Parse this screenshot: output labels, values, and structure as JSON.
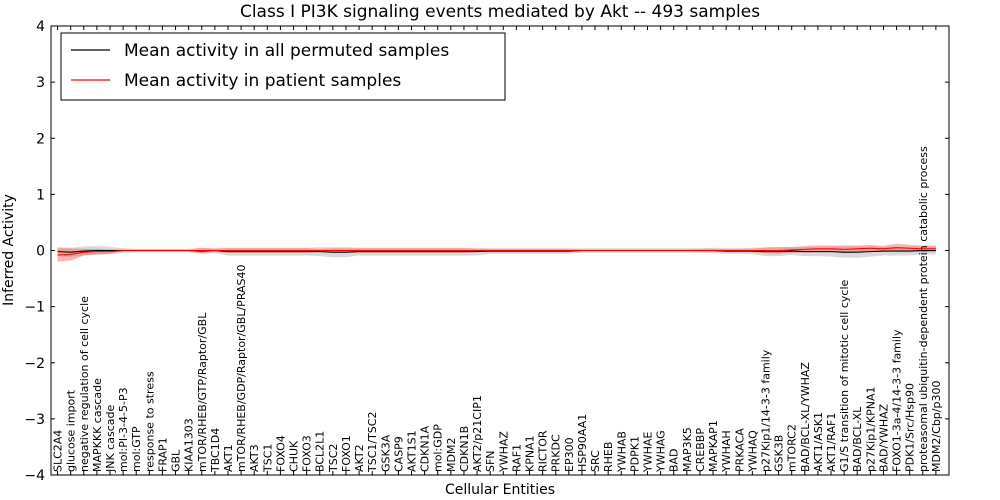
{
  "chart_data": {
    "type": "line",
    "title": "Class I PI3K signaling events mediated by Akt -- 493 samples",
    "xlabel": "Cellular Entities",
    "ylabel": "Inferred Activity",
    "ylim": [
      -4,
      4
    ],
    "yticks": [
      -4,
      -3,
      -2,
      -1,
      0,
      1,
      2,
      3,
      4
    ],
    "grid": false,
    "legend_position": "top-left",
    "colors": {
      "permuted": "#000000",
      "patient": "#ff0000",
      "permuted_band": "#bbbbbb",
      "patient_band": "#ff6666"
    },
    "categories": [
      "SLC2A4",
      "glucose import",
      "negative regulation of cell cycle",
      "MAPKKK cascade",
      "JNK cascade",
      "mol:PI-3-4-5-P3",
      "mol:GTP",
      "response to stress",
      "FRAP1",
      "GBL",
      "KIAA1303",
      "mTOR/RHEB/GTP/Raptor/GBL",
      "TBC1D4",
      "AKT1",
      "mTOR/RHEB/GDP/Raptor/GBL/PRAS40",
      "AKT3",
      "TSC1",
      "FOXO4",
      "CHUK",
      "FOXO3",
      "BCL2L1",
      "TSC2",
      "FOXO1",
      "AKT2",
      "TSC1/TSC2",
      "GSK3A",
      "CASP9",
      "AKT1S1",
      "CDKN1A",
      "mol:GDP",
      "MDM2",
      "CDKN1B",
      "AKT2/p21CIP1",
      "SFN",
      "YWHAZ",
      "RAF1",
      "KPNA1",
      "RICTOR",
      "PRKDC",
      "EP300",
      "HSP90AA1",
      "SRC",
      "RHEB",
      "YWHAB",
      "PDPK1",
      "YWHAE",
      "YWHAG",
      "BAD",
      "MAP3K5",
      "CREBBP",
      "MAPKAP1",
      "YWHAH",
      "PRKACA",
      "YWHAQ",
      "p27Kip1/14-3-3 family",
      "GSK3B",
      "mTORC2",
      "BAD/BCL-XL/YWHAZ",
      "AKT1/ASK1",
      "AKT1/RAF1",
      "G1/S transition of mitotic cell cycle",
      "BAD/BCL-XL",
      "p27Kip1/KPNA1",
      "BAD/YWHAZ",
      "FOXO1-3a-4/14-3-3 family",
      "PDK1/Src/Hsp90",
      "proteasomal ubiquitin-dependent protein catabolic process",
      "MDM2/Cbp/p300"
    ],
    "series": [
      {
        "name": "Mean activity in all permuted samples",
        "values": [
          -0.02,
          -0.03,
          -0.01,
          0,
          0,
          0,
          0,
          0,
          0,
          0,
          0,
          -0.01,
          0,
          -0.02,
          -0.02,
          -0.02,
          -0.02,
          -0.02,
          -0.02,
          -0.02,
          -0.02,
          -0.03,
          -0.03,
          -0.02,
          -0.02,
          -0.02,
          -0.02,
          -0.02,
          -0.02,
          -0.02,
          -0.02,
          -0.02,
          -0.02,
          -0.01,
          -0.01,
          -0.01,
          -0.01,
          -0.01,
          -0.01,
          -0.01,
          0,
          0,
          0,
          0,
          0,
          0,
          0,
          0,
          0,
          0,
          0,
          -0.01,
          -0.01,
          -0.01,
          -0.02,
          -0.02,
          -0.01,
          -0.02,
          -0.02,
          -0.02,
          -0.03,
          -0.03,
          -0.02,
          -0.01,
          -0.01,
          -0.01,
          0,
          0
        ],
        "band": [
          0.08,
          0.08,
          0.08,
          0.08,
          0.07,
          0.04,
          0.03,
          0.03,
          0.03,
          0.03,
          0.03,
          0.05,
          0.05,
          0.07,
          0.07,
          0.07,
          0.07,
          0.07,
          0.07,
          0.07,
          0.08,
          0.09,
          0.09,
          0.07,
          0.07,
          0.07,
          0.07,
          0.07,
          0.07,
          0.07,
          0.07,
          0.07,
          0.07,
          0.05,
          0.05,
          0.05,
          0.05,
          0.05,
          0.05,
          0.05,
          0.04,
          0.04,
          0.04,
          0.04,
          0.04,
          0.04,
          0.04,
          0.04,
          0.04,
          0.04,
          0.05,
          0.05,
          0.05,
          0.06,
          0.08,
          0.08,
          0.07,
          0.08,
          0.08,
          0.09,
          0.1,
          0.1,
          0.09,
          0.08,
          0.08,
          0.08,
          0.07,
          0.07
        ]
      },
      {
        "name": "Mean activity in patient samples",
        "values": [
          -0.08,
          -0.07,
          -0.03,
          -0.02,
          -0.02,
          0,
          0,
          0,
          0,
          0,
          0,
          0,
          0,
          0,
          0,
          0,
          0,
          0,
          0,
          0,
          0,
          0,
          0,
          0,
          0,
          0,
          0,
          0,
          0,
          0,
          0,
          0,
          0,
          0,
          0,
          0,
          0,
          0,
          0,
          0,
          0,
          0,
          0,
          0,
          0,
          0,
          0,
          0,
          0,
          0,
          0,
          0,
          0,
          0,
          0,
          0,
          0.01,
          0.02,
          0.03,
          0.03,
          0.02,
          0.03,
          0.04,
          0.03,
          0.05,
          0.04,
          0.03,
          0.03
        ],
        "band": [
          0.12,
          0.11,
          0.06,
          0.05,
          0.04,
          0.02,
          0.02,
          0.02,
          0.02,
          0.02,
          0.02,
          0.05,
          0.03,
          0.04,
          0.04,
          0.04,
          0.04,
          0.04,
          0.04,
          0.04,
          0.03,
          0.04,
          0.04,
          0.04,
          0.04,
          0.04,
          0.04,
          0.04,
          0.04,
          0.04,
          0.04,
          0.04,
          0.03,
          0.03,
          0.03,
          0.03,
          0.03,
          0.03,
          0.03,
          0.03,
          0.02,
          0.02,
          0.02,
          0.02,
          0.02,
          0.02,
          0.02,
          0.02,
          0.02,
          0.03,
          0.03,
          0.03,
          0.03,
          0.03,
          0.05,
          0.06,
          0.05,
          0.06,
          0.06,
          0.06,
          0.07,
          0.06,
          0.06,
          0.05,
          0.07,
          0.06,
          0.06,
          0.06
        ]
      }
    ]
  }
}
